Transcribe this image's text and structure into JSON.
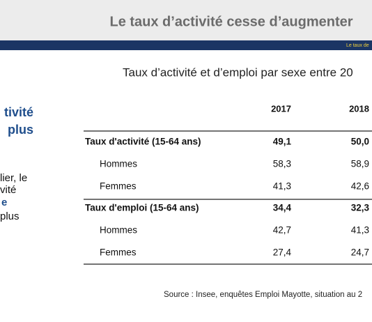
{
  "header": {
    "title": "Le taux d’activité cesse d’augmenter",
    "band_text": "Le taux de"
  },
  "left_text": {
    "heading_lines": [
      "tivité",
      "plus"
    ],
    "body_lines": [
      "lier, le",
      "vité",
      "e",
      "plus"
    ]
  },
  "table": {
    "title": "Taux d’activité et d’emploi par sexe entre 20",
    "columns": [
      "2017",
      "2018"
    ],
    "rows": [
      {
        "label": "Taux d'activité (15-64 ans)",
        "values": [
          "49,1",
          "50,0"
        ]
      },
      {
        "label": "Hommes",
        "values": [
          "58,3",
          "58,9"
        ]
      },
      {
        "label": "Femmes",
        "values": [
          "41,3",
          "42,6"
        ]
      },
      {
        "label": "Taux d'emploi (15-64 ans)",
        "values": [
          "34,4",
          "32,3"
        ]
      },
      {
        "label": "Hommes",
        "values": [
          "42,7",
          "41,3"
        ]
      },
      {
        "label": "Femmes",
        "values": [
          "27,4",
          "24,7"
        ]
      }
    ],
    "source": "Source : Insee, enquêtes Emploi Mayotte, situation au 2"
  }
}
